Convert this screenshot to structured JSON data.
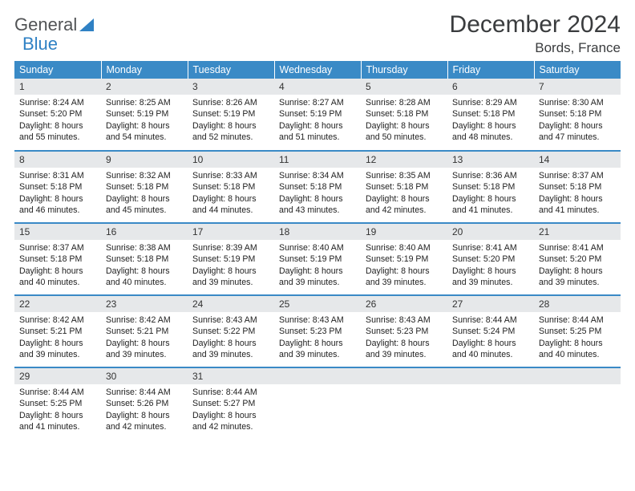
{
  "logo": {
    "text_general": "General",
    "text_blue": "Blue"
  },
  "header": {
    "title": "December 2024",
    "location": "Bords, France"
  },
  "colors": {
    "header_bg": "#3a8ac6",
    "header_text": "#ffffff",
    "daynum_bg": "#e6e8ea",
    "row_divider": "#3a8ac6",
    "logo_gray": "#515355",
    "logo_blue": "#2f81c4"
  },
  "calendar": {
    "type": "table",
    "columns": [
      "Sunday",
      "Monday",
      "Tuesday",
      "Wednesday",
      "Thursday",
      "Friday",
      "Saturday"
    ],
    "weeks": [
      [
        {
          "n": "1",
          "sunrise": "Sunrise: 8:24 AM",
          "sunset": "Sunset: 5:20 PM",
          "daylight": "Daylight: 8 hours and 55 minutes."
        },
        {
          "n": "2",
          "sunrise": "Sunrise: 8:25 AM",
          "sunset": "Sunset: 5:19 PM",
          "daylight": "Daylight: 8 hours and 54 minutes."
        },
        {
          "n": "3",
          "sunrise": "Sunrise: 8:26 AM",
          "sunset": "Sunset: 5:19 PM",
          "daylight": "Daylight: 8 hours and 52 minutes."
        },
        {
          "n": "4",
          "sunrise": "Sunrise: 8:27 AM",
          "sunset": "Sunset: 5:19 PM",
          "daylight": "Daylight: 8 hours and 51 minutes."
        },
        {
          "n": "5",
          "sunrise": "Sunrise: 8:28 AM",
          "sunset": "Sunset: 5:18 PM",
          "daylight": "Daylight: 8 hours and 50 minutes."
        },
        {
          "n": "6",
          "sunrise": "Sunrise: 8:29 AM",
          "sunset": "Sunset: 5:18 PM",
          "daylight": "Daylight: 8 hours and 48 minutes."
        },
        {
          "n": "7",
          "sunrise": "Sunrise: 8:30 AM",
          "sunset": "Sunset: 5:18 PM",
          "daylight": "Daylight: 8 hours and 47 minutes."
        }
      ],
      [
        {
          "n": "8",
          "sunrise": "Sunrise: 8:31 AM",
          "sunset": "Sunset: 5:18 PM",
          "daylight": "Daylight: 8 hours and 46 minutes."
        },
        {
          "n": "9",
          "sunrise": "Sunrise: 8:32 AM",
          "sunset": "Sunset: 5:18 PM",
          "daylight": "Daylight: 8 hours and 45 minutes."
        },
        {
          "n": "10",
          "sunrise": "Sunrise: 8:33 AM",
          "sunset": "Sunset: 5:18 PM",
          "daylight": "Daylight: 8 hours and 44 minutes."
        },
        {
          "n": "11",
          "sunrise": "Sunrise: 8:34 AM",
          "sunset": "Sunset: 5:18 PM",
          "daylight": "Daylight: 8 hours and 43 minutes."
        },
        {
          "n": "12",
          "sunrise": "Sunrise: 8:35 AM",
          "sunset": "Sunset: 5:18 PM",
          "daylight": "Daylight: 8 hours and 42 minutes."
        },
        {
          "n": "13",
          "sunrise": "Sunrise: 8:36 AM",
          "sunset": "Sunset: 5:18 PM",
          "daylight": "Daylight: 8 hours and 41 minutes."
        },
        {
          "n": "14",
          "sunrise": "Sunrise: 8:37 AM",
          "sunset": "Sunset: 5:18 PM",
          "daylight": "Daylight: 8 hours and 41 minutes."
        }
      ],
      [
        {
          "n": "15",
          "sunrise": "Sunrise: 8:37 AM",
          "sunset": "Sunset: 5:18 PM",
          "daylight": "Daylight: 8 hours and 40 minutes."
        },
        {
          "n": "16",
          "sunrise": "Sunrise: 8:38 AM",
          "sunset": "Sunset: 5:18 PM",
          "daylight": "Daylight: 8 hours and 40 minutes."
        },
        {
          "n": "17",
          "sunrise": "Sunrise: 8:39 AM",
          "sunset": "Sunset: 5:19 PM",
          "daylight": "Daylight: 8 hours and 39 minutes."
        },
        {
          "n": "18",
          "sunrise": "Sunrise: 8:40 AM",
          "sunset": "Sunset: 5:19 PM",
          "daylight": "Daylight: 8 hours and 39 minutes."
        },
        {
          "n": "19",
          "sunrise": "Sunrise: 8:40 AM",
          "sunset": "Sunset: 5:19 PM",
          "daylight": "Daylight: 8 hours and 39 minutes."
        },
        {
          "n": "20",
          "sunrise": "Sunrise: 8:41 AM",
          "sunset": "Sunset: 5:20 PM",
          "daylight": "Daylight: 8 hours and 39 minutes."
        },
        {
          "n": "21",
          "sunrise": "Sunrise: 8:41 AM",
          "sunset": "Sunset: 5:20 PM",
          "daylight": "Daylight: 8 hours and 39 minutes."
        }
      ],
      [
        {
          "n": "22",
          "sunrise": "Sunrise: 8:42 AM",
          "sunset": "Sunset: 5:21 PM",
          "daylight": "Daylight: 8 hours and 39 minutes."
        },
        {
          "n": "23",
          "sunrise": "Sunrise: 8:42 AM",
          "sunset": "Sunset: 5:21 PM",
          "daylight": "Daylight: 8 hours and 39 minutes."
        },
        {
          "n": "24",
          "sunrise": "Sunrise: 8:43 AM",
          "sunset": "Sunset: 5:22 PM",
          "daylight": "Daylight: 8 hours and 39 minutes."
        },
        {
          "n": "25",
          "sunrise": "Sunrise: 8:43 AM",
          "sunset": "Sunset: 5:23 PM",
          "daylight": "Daylight: 8 hours and 39 minutes."
        },
        {
          "n": "26",
          "sunrise": "Sunrise: 8:43 AM",
          "sunset": "Sunset: 5:23 PM",
          "daylight": "Daylight: 8 hours and 39 minutes."
        },
        {
          "n": "27",
          "sunrise": "Sunrise: 8:44 AM",
          "sunset": "Sunset: 5:24 PM",
          "daylight": "Daylight: 8 hours and 40 minutes."
        },
        {
          "n": "28",
          "sunrise": "Sunrise: 8:44 AM",
          "sunset": "Sunset: 5:25 PM",
          "daylight": "Daylight: 8 hours and 40 minutes."
        }
      ],
      [
        {
          "n": "29",
          "sunrise": "Sunrise: 8:44 AM",
          "sunset": "Sunset: 5:25 PM",
          "daylight": "Daylight: 8 hours and 41 minutes."
        },
        {
          "n": "30",
          "sunrise": "Sunrise: 8:44 AM",
          "sunset": "Sunset: 5:26 PM",
          "daylight": "Daylight: 8 hours and 42 minutes."
        },
        {
          "n": "31",
          "sunrise": "Sunrise: 8:44 AM",
          "sunset": "Sunset: 5:27 PM",
          "daylight": "Daylight: 8 hours and 42 minutes."
        },
        {
          "empty": true
        },
        {
          "empty": true
        },
        {
          "empty": true
        },
        {
          "empty": true
        }
      ]
    ]
  }
}
